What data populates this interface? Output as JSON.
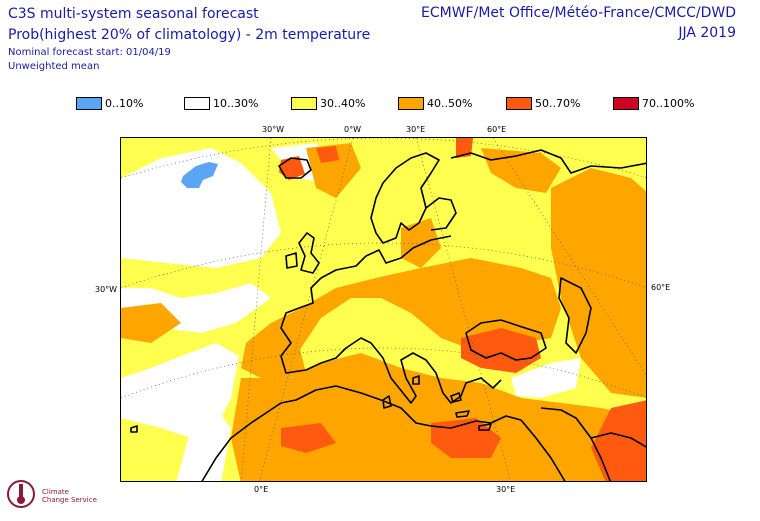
{
  "header": {
    "title": "C3S multi-system seasonal forecast",
    "subtitle": "Prob(highest 20% of climatology) - 2m temperature",
    "forecast_start": "Nominal forecast start: 01/04/19",
    "mean_type": "Unweighted mean",
    "providers": "ECMWF/Met Office/Météo-France/CMCC/DWD",
    "season": "JJA 2019"
  },
  "legend": [
    {
      "label": "0..10%",
      "color": "#5aa6f5"
    },
    {
      "label": "10..30%",
      "color": "#ffffff"
    },
    {
      "label": "30..40%",
      "color": "#ffff50"
    },
    {
      "label": "40..50%",
      "color": "#ffa500"
    },
    {
      "label": "50..70%",
      "color": "#ff5a10"
    },
    {
      "label": "70..100%",
      "color": "#d00020"
    }
  ],
  "grid_labels": {
    "top": [
      "30°W",
      "0°W",
      "30°E",
      "60°E"
    ],
    "left": "30°W",
    "right": "60°E",
    "bottom": [
      "0°E",
      "30°E"
    ]
  },
  "logo": {
    "line1": "Climate",
    "line2": "Change Service"
  }
}
